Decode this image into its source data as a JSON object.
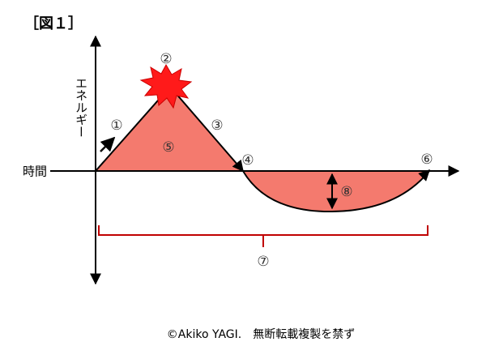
{
  "title": "［図１］",
  "y_axis_label": "エネルギー",
  "x_axis_label": "時間",
  "markers": [
    "①",
    "②",
    "③",
    "④",
    "⑤",
    "⑥",
    "⑦",
    "⑧"
  ],
  "copyright": "©Akiko YAGI.　無断転載複製を禁ず"
}
